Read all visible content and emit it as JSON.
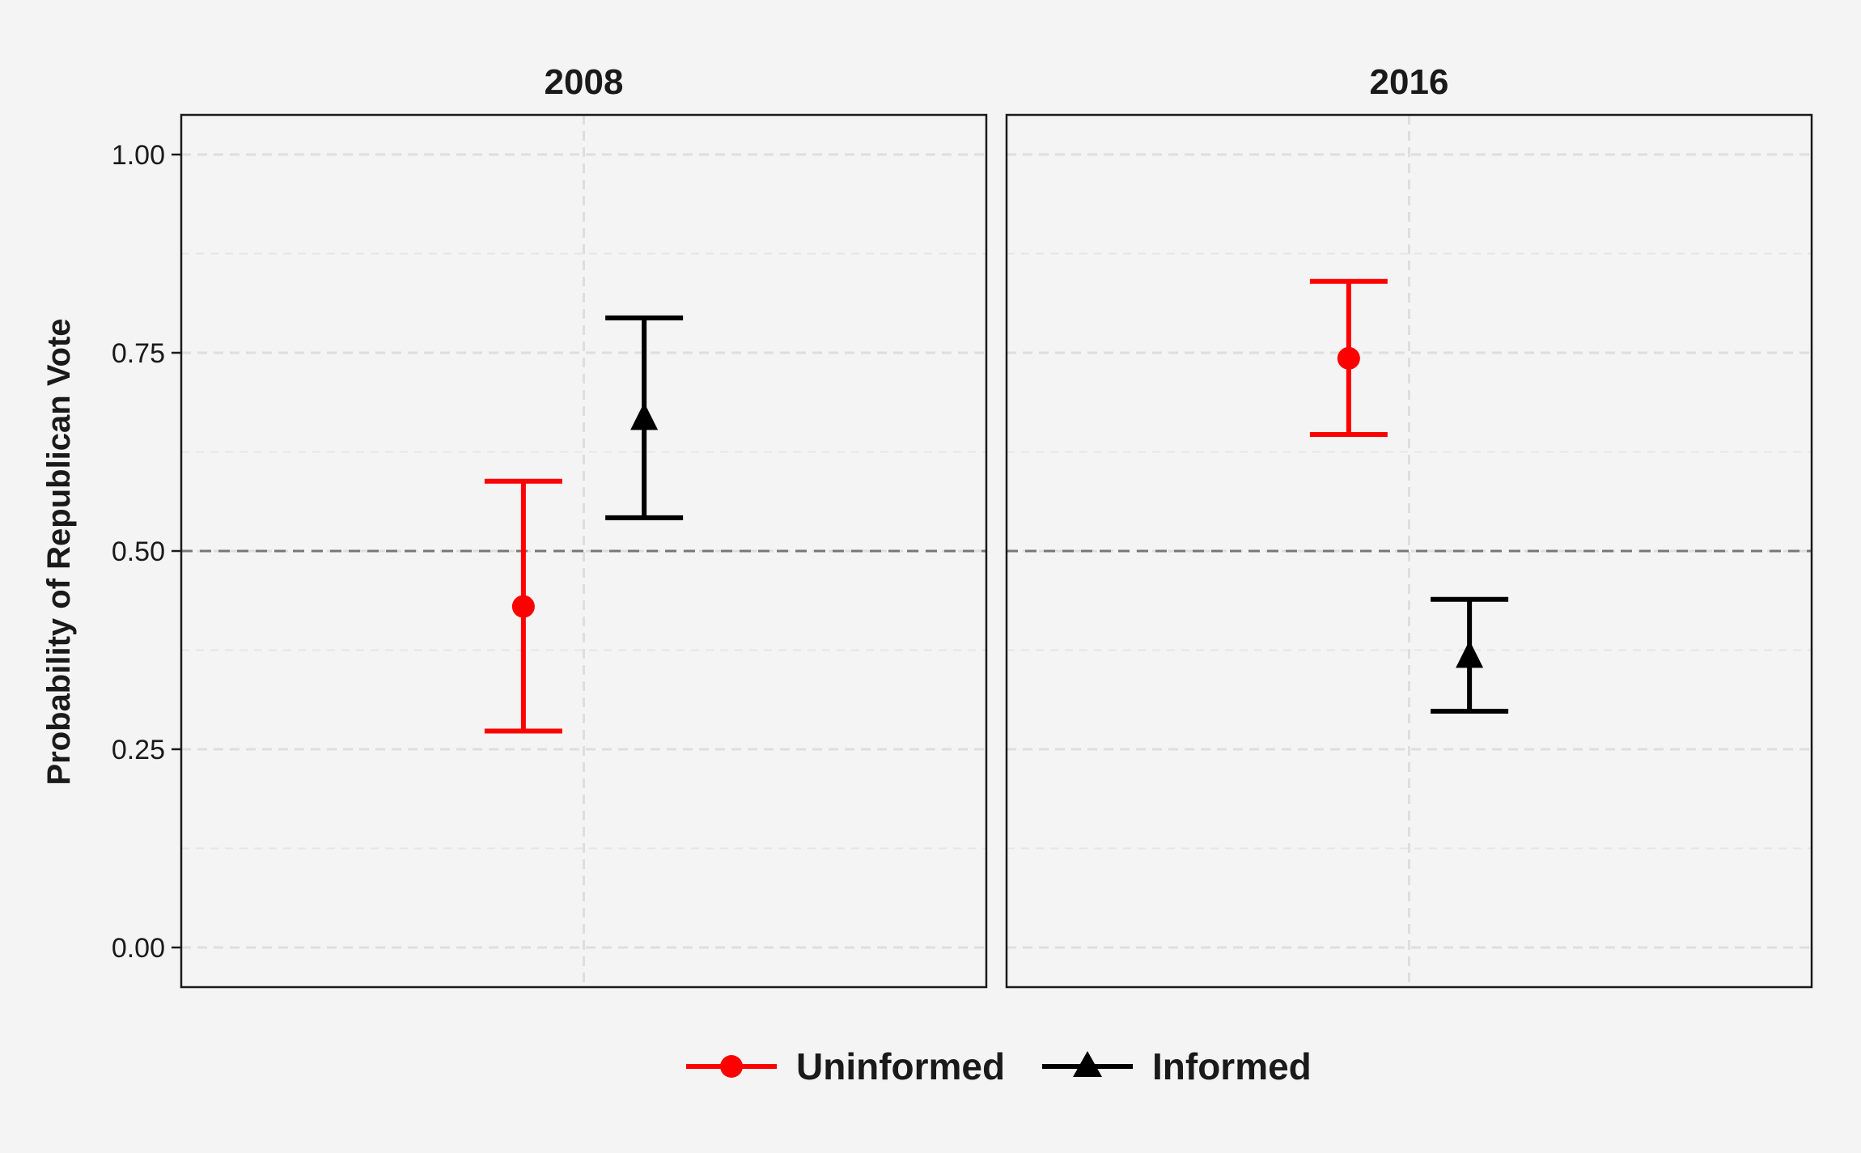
{
  "chart_data": {
    "type": "scatter",
    "ylabel": "Probability of Republican Vote",
    "ylim": [
      -0.05,
      1.05
    ],
    "yticks": [
      {
        "value": 0,
        "label": "0.00"
      },
      {
        "value": 0.25,
        "label": "0.25"
      },
      {
        "value": 0.5,
        "label": "0.50"
      },
      {
        "value": 0.75,
        "label": "0.75"
      },
      {
        "value": 1,
        "label": "1.00"
      }
    ],
    "reference_line": 0.5,
    "grid": true,
    "legend_position": "bottom",
    "panels": [
      {
        "title": "2008",
        "series": [
          {
            "name": "Uninformed",
            "value": 0.43,
            "low": 0.273,
            "high": 0.588
          },
          {
            "name": "Informed",
            "value": 0.668,
            "low": 0.542,
            "high": 0.794
          }
        ]
      },
      {
        "title": "2016",
        "series": [
          {
            "name": "Uninformed",
            "value": 0.743,
            "low": 0.647,
            "high": 0.84
          },
          {
            "name": "Informed",
            "value": 0.368,
            "low": 0.298,
            "high": 0.439
          }
        ]
      }
    ],
    "series_styles": [
      {
        "name": "Uninformed",
        "color": "#ff0000",
        "marker": "circle"
      },
      {
        "name": "Informed",
        "color": "#000000",
        "marker": "triangle"
      }
    ]
  }
}
